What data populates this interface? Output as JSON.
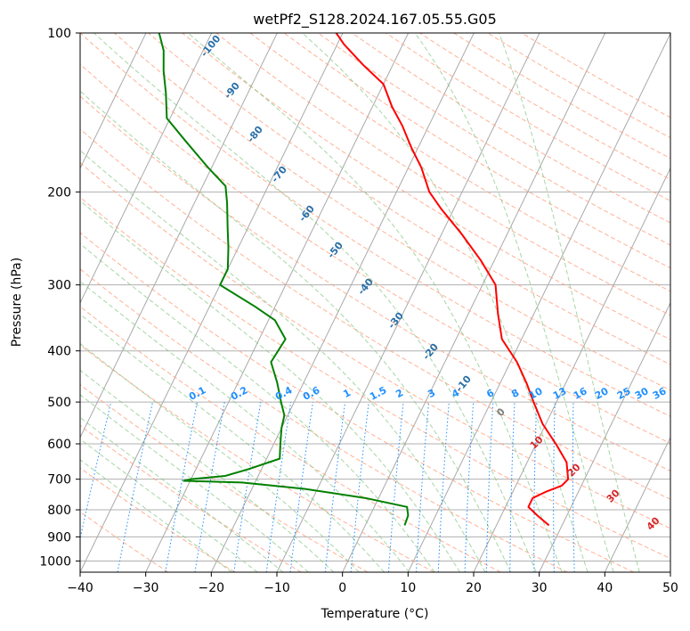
{
  "chart_data": {
    "type": "line",
    "title": "wetPf2_S128.2024.167.05.55.G05",
    "xlabel": "Temperature (°C)",
    "ylabel": "Pressure (hPa)",
    "xlim": [
      -40,
      50
    ],
    "ylim": [
      1050,
      100
    ],
    "x_ticks": [
      "−40",
      "−30",
      "−20",
      "−10",
      "0",
      "10",
      "20",
      "30",
      "40",
      "50"
    ],
    "x_tick_values": [
      -40,
      -30,
      -20,
      -10,
      0,
      10,
      20,
      30,
      40,
      50
    ],
    "y_ticks": [
      "100",
      "200",
      "300",
      "400",
      "500",
      "600",
      "700",
      "800",
      "900",
      "1000"
    ],
    "y_tick_values": [
      100,
      200,
      300,
      400,
      500,
      600,
      700,
      800,
      900,
      1000
    ],
    "y_scale": "log",
    "grid": true,
    "skew": true,
    "series": [
      {
        "role": "temperature",
        "color": "#ff0000",
        "points": [
          [
            28.0,
            856
          ],
          [
            25.5,
            820
          ],
          [
            23.5,
            790
          ],
          [
            23.5,
            760
          ],
          [
            25.0,
            740
          ],
          [
            27.0,
            720
          ],
          [
            27.5,
            700
          ],
          [
            26.0,
            650
          ],
          [
            23.0,
            600
          ],
          [
            19.5,
            550
          ],
          [
            16.5,
            500
          ],
          [
            14.0,
            460
          ],
          [
            11.0,
            420
          ],
          [
            7.0,
            380
          ],
          [
            4.5,
            340
          ],
          [
            2.0,
            300
          ],
          [
            -2.0,
            270
          ],
          [
            -7.0,
            240
          ],
          [
            -12.0,
            215
          ],
          [
            -15.0,
            200
          ],
          [
            -18.0,
            180
          ],
          [
            -21.0,
            165
          ],
          [
            -24.0,
            150
          ],
          [
            -27.0,
            138
          ],
          [
            -30.0,
            125
          ],
          [
            -34.5,
            115
          ],
          [
            -39.0,
            105
          ],
          [
            -41.0,
            100
          ]
        ]
      },
      {
        "role": "dewpoint",
        "color": "#008000",
        "points": [
          [
            6.0,
            856
          ],
          [
            5.8,
            820
          ],
          [
            5.0,
            790
          ],
          [
            -2.0,
            760
          ],
          [
            -12.0,
            730
          ],
          [
            -22.0,
            710
          ],
          [
            -31.0,
            705
          ],
          [
            -30.0,
            700
          ],
          [
            -25.0,
            690
          ],
          [
            -22.0,
            670
          ],
          [
            -18.0,
            640
          ],
          [
            -19.0,
            600
          ],
          [
            -20.0,
            560
          ],
          [
            -20.5,
            530
          ],
          [
            -22.0,
            500
          ],
          [
            -24.0,
            460
          ],
          [
            -26.5,
            420
          ],
          [
            -26.0,
            380
          ],
          [
            -29.0,
            350
          ],
          [
            -33.0,
            330
          ],
          [
            -40.0,
            300
          ],
          [
            -40.0,
            280
          ],
          [
            -41.5,
            255
          ],
          [
            -43.0,
            235
          ],
          [
            -45.0,
            210
          ],
          [
            -46.5,
            195
          ],
          [
            -50.5,
            180
          ],
          [
            -56.0,
            160
          ],
          [
            -60.5,
            145
          ],
          [
            -62.5,
            130
          ],
          [
            -64.5,
            118
          ],
          [
            -66.0,
            108
          ],
          [
            -68.0,
            100
          ]
        ]
      }
    ],
    "dry_adiabat_labels": [
      "-100",
      "-90",
      "-80",
      "-70",
      "-60",
      "-50",
      "-40",
      "-30",
      "-20",
      "-10"
    ],
    "mixing_ratio_labels": [
      "0.1",
      "0.2",
      "0.4",
      "0.6",
      "1",
      "1.5",
      "2",
      "3",
      "4",
      "6",
      "8",
      "10",
      "13",
      "16",
      "20",
      "25",
      "30",
      "36"
    ],
    "moist_adiabat_labels": [
      "0",
      "10",
      "20",
      "30",
      "40"
    ],
    "colors": {
      "temperature": "#ff0000",
      "dewpoint": "#008000",
      "dry_adiabat": "#ff9e7a",
      "moist_adiabat": "#7fc47f",
      "mixing_ratio": "#1f8fff",
      "isotherm": "#808080",
      "dry_adiabat_label": "#2a6fa8",
      "moist_adiabat_label": "#d62728"
    }
  }
}
